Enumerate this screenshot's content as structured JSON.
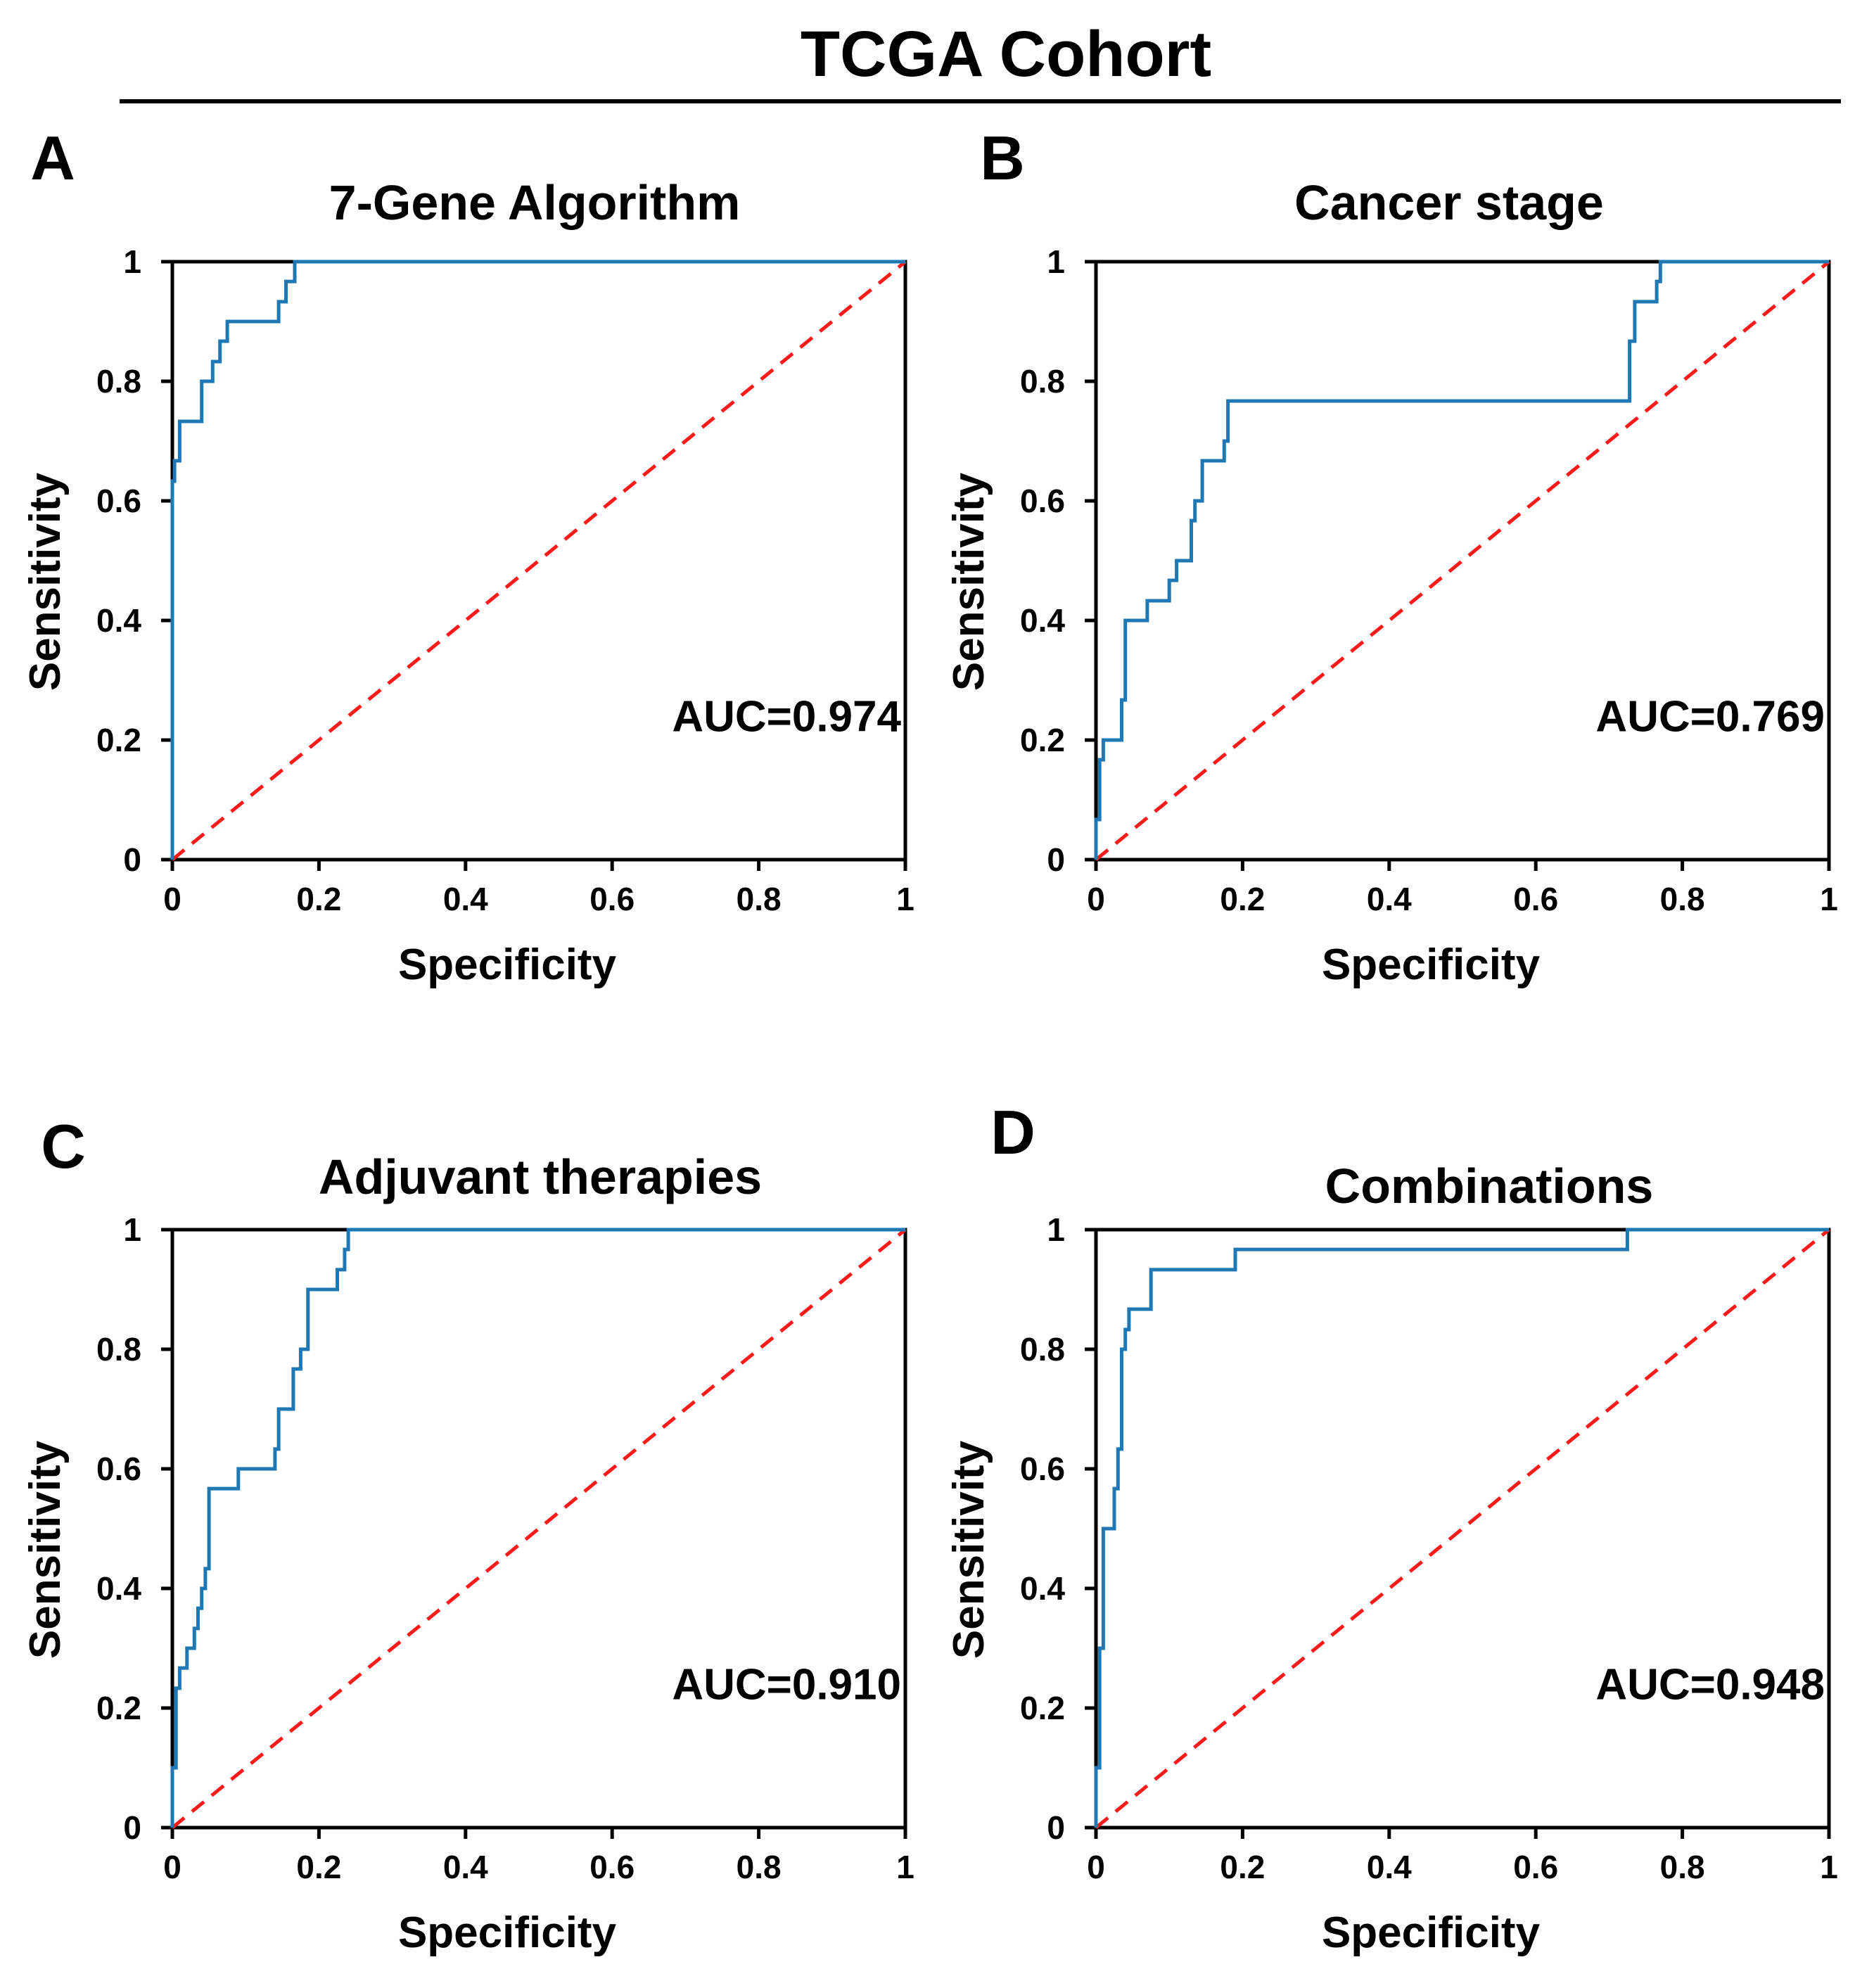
{
  "figure": {
    "title": "TCGA Cohort",
    "curve_color": "#1f78b4",
    "reference_color": "#ff1a1a",
    "axis_color": "#000000"
  },
  "chart_data": [
    {
      "type": "line",
      "panel": "A",
      "title": "7-Gene Algorithm",
      "xlabel": "Specificity",
      "ylabel": "Sensitivity",
      "xlim": [
        0,
        1
      ],
      "ylim": [
        0,
        1
      ],
      "xticks": [
        "0",
        "0.2",
        "0.4",
        "0.6",
        "0.8",
        "1"
      ],
      "yticks": [
        "0",
        "0.2",
        "0.4",
        "0.6",
        "0.8",
        "1"
      ],
      "annotation": "AUC=0.974",
      "grid": false,
      "series": [
        {
          "x": [
            0,
            0,
            0.003,
            0.003,
            0.01,
            0.01,
            0.04,
            0.04,
            0.055,
            0.055,
            0.065,
            0.065,
            0.075,
            0.075,
            0.085,
            0.085,
            0.145,
            0.145,
            0.155,
            0.155,
            0.167,
            0.167,
            1.0
          ],
          "y": [
            0,
            0.633,
            0.633,
            0.667,
            0.667,
            0.733,
            0.733,
            0.8,
            0.8,
            0.833,
            0.833,
            0.867,
            0.867,
            0.9,
            0.9,
            0.9,
            0.9,
            0.933,
            0.933,
            0.967,
            0.967,
            1.0,
            1.0
          ]
        },
        {
          "x": [
            0,
            1
          ],
          "y": [
            0,
            1
          ]
        }
      ]
    },
    {
      "type": "line",
      "panel": "B",
      "title": "Cancer stage",
      "xlabel": "Specificity",
      "ylabel": "Sensitivity",
      "xlim": [
        0,
        1
      ],
      "ylim": [
        0,
        1
      ],
      "xticks": [
        "0",
        "0.2",
        "0.4",
        "0.6",
        "0.8",
        "1"
      ],
      "yticks": [
        "0",
        "0.2",
        "0.4",
        "0.6",
        "0.8",
        "1"
      ],
      "annotation": "AUC=0.769",
      "grid": false,
      "series": [
        {
          "x": [
            0,
            0,
            0.005,
            0.005,
            0.01,
            0.01,
            0.035,
            0.035,
            0.04,
            0.04,
            0.07,
            0.07,
            0.1,
            0.1,
            0.11,
            0.11,
            0.13,
            0.13,
            0.135,
            0.135,
            0.145,
            0.145,
            0.175,
            0.175,
            0.18,
            0.18,
            0.728,
            0.728,
            0.735,
            0.735,
            0.765,
            0.765,
            0.77,
            0.77,
            1.0
          ],
          "y": [
            0,
            0.067,
            0.067,
            0.167,
            0.167,
            0.2,
            0.2,
            0.267,
            0.267,
            0.4,
            0.4,
            0.433,
            0.433,
            0.467,
            0.467,
            0.5,
            0.5,
            0.567,
            0.567,
            0.6,
            0.6,
            0.667,
            0.667,
            0.7,
            0.7,
            0.767,
            0.767,
            0.867,
            0.867,
            0.933,
            0.933,
            0.967,
            0.967,
            1.0,
            1.0
          ]
        },
        {
          "x": [
            0,
            1
          ],
          "y": [
            0,
            1
          ]
        }
      ]
    },
    {
      "type": "line",
      "panel": "C",
      "title": "Adjuvant therapies",
      "xlabel": "Specificity",
      "ylabel": "Sensitivity",
      "xlim": [
        0,
        1
      ],
      "ylim": [
        0,
        1
      ],
      "xticks": [
        "0",
        "0.2",
        "0.4",
        "0.6",
        "0.8",
        "1"
      ],
      "yticks": [
        "0",
        "0.2",
        "0.4",
        "0.6",
        "0.8",
        "1"
      ],
      "annotation": "AUC=0.910",
      "grid": false,
      "series": [
        {
          "x": [
            0,
            0,
            0.005,
            0.005,
            0.01,
            0.01,
            0.02,
            0.02,
            0.03,
            0.03,
            0.035,
            0.035,
            0.04,
            0.04,
            0.045,
            0.045,
            0.05,
            0.05,
            0.09,
            0.09,
            0.14,
            0.14,
            0.145,
            0.145,
            0.165,
            0.165,
            0.175,
            0.175,
            0.185,
            0.185,
            0.225,
            0.225,
            0.235,
            0.235,
            0.24,
            0.24,
            1.0
          ],
          "y": [
            0,
            0.1,
            0.1,
            0.233,
            0.233,
            0.267,
            0.267,
            0.3,
            0.3,
            0.333,
            0.333,
            0.367,
            0.367,
            0.4,
            0.4,
            0.433,
            0.433,
            0.567,
            0.567,
            0.6,
            0.6,
            0.633,
            0.633,
            0.7,
            0.7,
            0.767,
            0.767,
            0.8,
            0.8,
            0.9,
            0.9,
            0.933,
            0.933,
            0.967,
            0.967,
            1.0,
            1.0
          ]
        },
        {
          "x": [
            0,
            1
          ],
          "y": [
            0,
            1
          ]
        }
      ]
    },
    {
      "type": "line",
      "panel": "D",
      "title": "Combinations",
      "xlabel": "Specificity",
      "ylabel": "Sensitivity",
      "xlim": [
        0,
        1
      ],
      "ylim": [
        0,
        1
      ],
      "xticks": [
        "0",
        "0.2",
        "0.4",
        "0.6",
        "0.8",
        "1"
      ],
      "yticks": [
        "0",
        "0.2",
        "0.4",
        "0.6",
        "0.8",
        "1"
      ],
      "annotation": "AUC=0.948",
      "grid": false,
      "series": [
        {
          "x": [
            0,
            0,
            0.005,
            0.005,
            0.01,
            0.01,
            0.025,
            0.025,
            0.03,
            0.03,
            0.035,
            0.035,
            0.04,
            0.04,
            0.045,
            0.045,
            0.075,
            0.075,
            0.19,
            0.19,
            0.725,
            0.725,
            1.0
          ],
          "y": [
            0,
            0.1,
            0.1,
            0.3,
            0.3,
            0.5,
            0.5,
            0.567,
            0.567,
            0.633,
            0.633,
            0.8,
            0.8,
            0.833,
            0.833,
            0.867,
            0.867,
            0.933,
            0.933,
            0.967,
            0.967,
            1.0,
            1.0
          ]
        },
        {
          "x": [
            0,
            1
          ],
          "y": [
            0,
            1
          ]
        }
      ]
    }
  ]
}
